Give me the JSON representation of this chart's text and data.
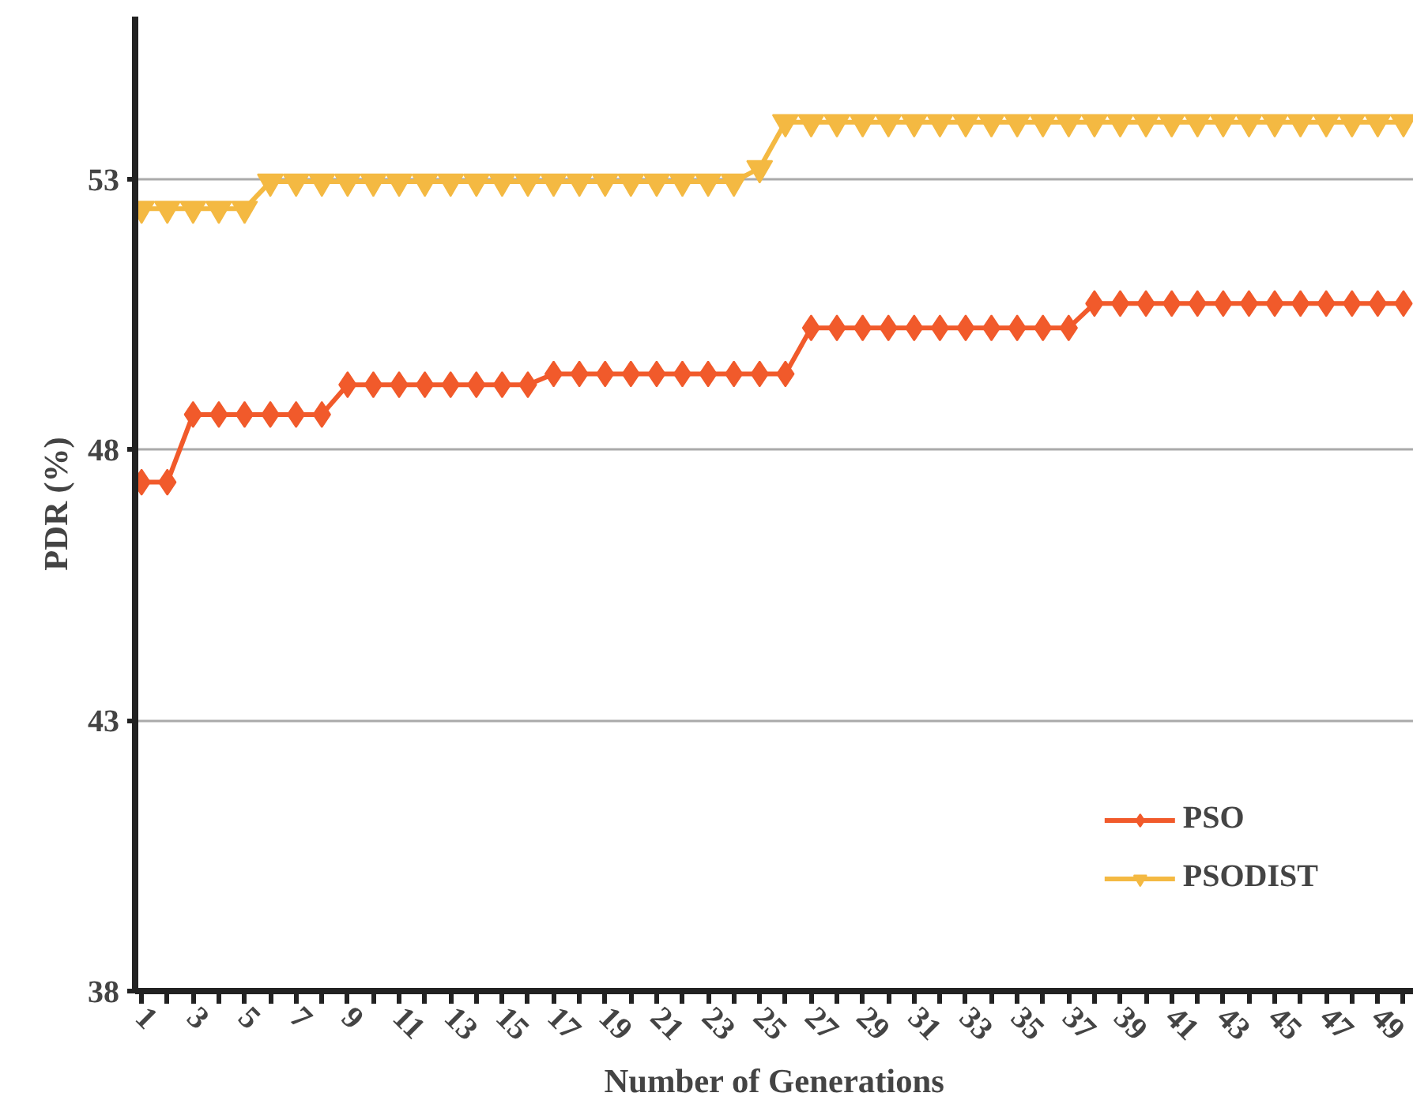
{
  "chart_data": {
    "type": "line",
    "xlabel": "Number of Generations",
    "ylabel": "PDR (%)",
    "x": [
      1,
      2,
      3,
      4,
      5,
      6,
      7,
      8,
      9,
      10,
      11,
      12,
      13,
      14,
      15,
      16,
      17,
      18,
      19,
      20,
      21,
      22,
      23,
      24,
      25,
      26,
      27,
      28,
      29,
      30,
      31,
      32,
      33,
      34,
      35,
      36,
      37,
      38,
      39,
      40,
      41,
      42,
      43,
      44,
      45,
      46,
      47,
      48,
      49,
      50
    ],
    "series": [
      {
        "name": "PSO",
        "color": "#f15a2b",
        "marker": "diamond",
        "values": [
          47.4,
          47.4,
          48.65,
          48.65,
          48.65,
          48.65,
          48.65,
          48.65,
          49.2,
          49.2,
          49.2,
          49.2,
          49.2,
          49.2,
          49.2,
          49.2,
          49.4,
          49.4,
          49.4,
          49.4,
          49.4,
          49.4,
          49.4,
          49.4,
          49.4,
          49.4,
          50.25,
          50.25,
          50.25,
          50.25,
          50.25,
          50.25,
          50.25,
          50.25,
          50.25,
          50.25,
          50.25,
          50.7,
          50.7,
          50.7,
          50.7,
          50.7,
          50.7,
          50.7,
          50.7,
          50.7,
          50.7,
          50.7,
          50.7,
          50.7
        ]
      },
      {
        "name": "PSODIST",
        "color": "#f4b942",
        "marker": "triangle",
        "values": [
          52.45,
          52.45,
          52.45,
          52.45,
          52.45,
          52.95,
          52.95,
          52.95,
          52.95,
          52.95,
          52.95,
          52.95,
          52.95,
          52.95,
          52.95,
          52.95,
          52.95,
          52.95,
          52.95,
          52.95,
          52.95,
          52.95,
          52.95,
          52.95,
          53.2,
          54.05,
          54.05,
          54.05,
          54.05,
          54.05,
          54.05,
          54.05,
          54.05,
          54.05,
          54.05,
          54.05,
          54.05,
          54.05,
          54.05,
          54.05,
          54.05,
          54.05,
          54.05,
          54.05,
          54.05,
          54.05,
          54.05,
          54.05,
          54.05,
          54.05
        ]
      }
    ],
    "xlim": [
      0.75,
      50.4
    ],
    "xticks": [
      1,
      {
        "value": 2,
        "label": null
      },
      3,
      {
        "value": 4,
        "label": null
      },
      5,
      {
        "value": 6,
        "label": null
      },
      7,
      {
        "value": 8,
        "label": null
      },
      9,
      {
        "value": 10,
        "label": null
      },
      11,
      {
        "value": 12,
        "label": null
      },
      13,
      {
        "value": 14,
        "label": null
      },
      15,
      {
        "value": 16,
        "label": null
      },
      17,
      {
        "value": 18,
        "label": null
      },
      19,
      {
        "value": 20,
        "label": null
      },
      21,
      {
        "value": 22,
        "label": null
      },
      23,
      {
        "value": 24,
        "label": null
      },
      25,
      {
        "value": 26,
        "label": null
      },
      27,
      {
        "value": 28,
        "label": null
      },
      29,
      {
        "value": 30,
        "label": null
      },
      31,
      {
        "value": 32,
        "label": null
      },
      33,
      {
        "value": 34,
        "label": null
      },
      35,
      {
        "value": 36,
        "label": null
      },
      37,
      {
        "value": 38,
        "label": null
      },
      39,
      {
        "value": 40,
        "label": null
      },
      41,
      {
        "value": 42,
        "label": null
      },
      43,
      {
        "value": 44,
        "label": null
      },
      45,
      {
        "value": 46,
        "label": null
      },
      47,
      {
        "value": 48,
        "label": null
      },
      49,
      {
        "value": 50,
        "label": null
      }
    ],
    "ylim": [
      38,
      56
    ],
    "yticks": [
      38,
      43,
      48,
      53
    ],
    "grid": "y",
    "legend": "bottom right",
    "line_style": "solid"
  }
}
